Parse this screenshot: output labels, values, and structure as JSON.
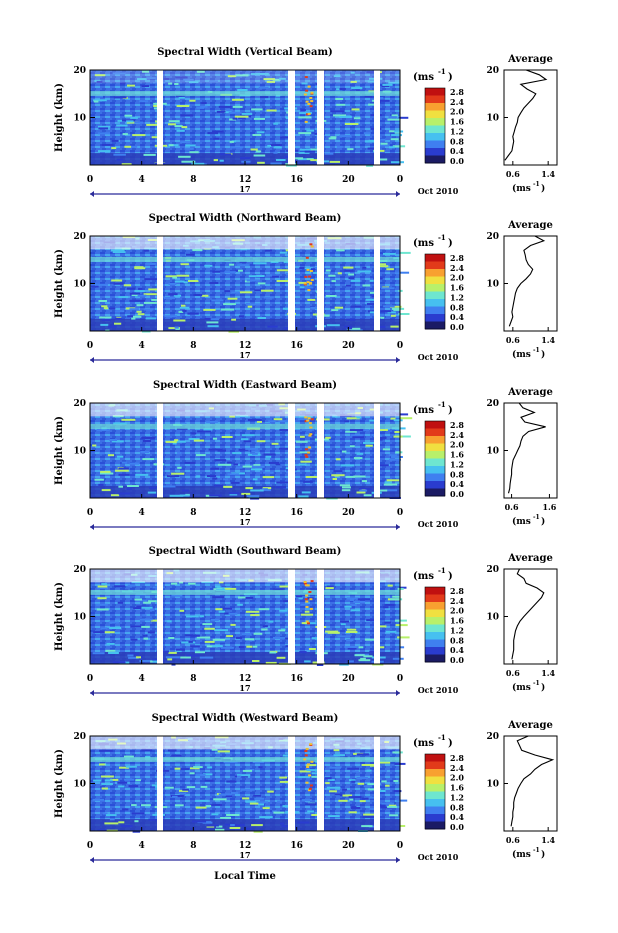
{
  "chart_data": {
    "type": "heatmap",
    "x_axis": {
      "ticks": [
        "0",
        "4",
        "8",
        "12",
        "16",
        "20",
        "0"
      ],
      "day_label": "17",
      "date_label": "Oct 2010",
      "xlabel": "Local Time"
    },
    "y_axis": {
      "label": "Height (km)",
      "ticks": [
        "10",
        "20"
      ],
      "range_km": [
        0,
        20
      ]
    },
    "colorbar": {
      "unit": "(ms",
      "unit_exp": "-1",
      "unit_close": ")",
      "ticks": [
        "2.8",
        "2.4",
        "2.0",
        "1.6",
        "1.2",
        "0.8",
        "0.4",
        "0.0"
      ],
      "range": [
        0,
        2.8
      ],
      "colors": [
        "#1b1b64",
        "#2a3ccf",
        "#3f7ff0",
        "#46c0f0",
        "#6ee6d0",
        "#b8f06a",
        "#f0e040",
        "#f8a030",
        "#e23a1a",
        "#c01010"
      ]
    },
    "average_profile": {
      "title": "Average",
      "ylabel_ticks": [
        "10",
        "20"
      ],
      "xunit": "(ms",
      "xunit_exp": "-1",
      "xunit_close": ")"
    },
    "panels": [
      {
        "title": "Spectral Width (Vertical Beam)",
        "avg_xticks": [
          "0.6",
          "1.4"
        ],
        "avg_xrange": [
          0.4,
          1.6
        ],
        "profile": [
          [
            0.42,
            1
          ],
          [
            0.5,
            2
          ],
          [
            0.58,
            3
          ],
          [
            0.6,
            4
          ],
          [
            0.62,
            5
          ],
          [
            0.6,
            6
          ],
          [
            0.63,
            7
          ],
          [
            0.66,
            8
          ],
          [
            0.7,
            9
          ],
          [
            0.72,
            10
          ],
          [
            0.78,
            11
          ],
          [
            0.85,
            12
          ],
          [
            0.95,
            13
          ],
          [
            1.05,
            14
          ],
          [
            1.12,
            15
          ],
          [
            0.92,
            16
          ],
          [
            0.78,
            17
          ],
          [
            1.35,
            18
          ],
          [
            1.2,
            19
          ],
          [
            0.9,
            20
          ]
        ]
      },
      {
        "title": "Spectral Width (Northward Beam)",
        "avg_xticks": [
          "0.6",
          "1.4"
        ],
        "avg_xrange": [
          0.4,
          1.6
        ],
        "profile": [
          [
            0.52,
            1
          ],
          [
            0.56,
            2
          ],
          [
            0.6,
            3
          ],
          [
            0.58,
            4
          ],
          [
            0.6,
            5
          ],
          [
            0.62,
            6
          ],
          [
            0.64,
            7
          ],
          [
            0.66,
            8
          ],
          [
            0.7,
            9
          ],
          [
            0.78,
            10
          ],
          [
            0.9,
            11
          ],
          [
            1.0,
            12
          ],
          [
            1.05,
            13
          ],
          [
            0.95,
            14
          ],
          [
            0.9,
            15
          ],
          [
            0.88,
            16
          ],
          [
            0.85,
            17
          ],
          [
            1.0,
            18
          ],
          [
            1.3,
            19
          ],
          [
            1.1,
            20
          ]
        ]
      },
      {
        "title": "Spectral Width (Eastward Beam)",
        "avg_xticks": [
          "0.6",
          "1.6"
        ],
        "avg_xrange": [
          0.4,
          1.8
        ],
        "profile": [
          [
            0.52,
            1
          ],
          [
            0.55,
            2
          ],
          [
            0.56,
            3
          ],
          [
            0.58,
            4
          ],
          [
            0.6,
            5
          ],
          [
            0.6,
            6
          ],
          [
            0.62,
            7
          ],
          [
            0.64,
            8
          ],
          [
            0.7,
            9
          ],
          [
            0.76,
            10
          ],
          [
            0.82,
            11
          ],
          [
            0.85,
            12
          ],
          [
            0.9,
            13
          ],
          [
            1.05,
            14
          ],
          [
            1.5,
            15
          ],
          [
            0.95,
            16
          ],
          [
            0.85,
            17
          ],
          [
            1.2,
            18
          ],
          [
            0.9,
            19
          ],
          [
            0.8,
            20
          ]
        ]
      },
      {
        "title": "Spectral Width (Southward Beam)",
        "avg_xticks": [
          "0.6",
          "1.4"
        ],
        "avg_xrange": [
          0.4,
          1.6
        ],
        "profile": [
          [
            0.58,
            1
          ],
          [
            0.6,
            2
          ],
          [
            0.62,
            3
          ],
          [
            0.62,
            4
          ],
          [
            0.62,
            5
          ],
          [
            0.64,
            6
          ],
          [
            0.66,
            7
          ],
          [
            0.7,
            8
          ],
          [
            0.76,
            9
          ],
          [
            0.85,
            10
          ],
          [
            0.95,
            11
          ],
          [
            1.05,
            12
          ],
          [
            1.15,
            13
          ],
          [
            1.25,
            14
          ],
          [
            1.3,
            15
          ],
          [
            1.15,
            16
          ],
          [
            0.9,
            17
          ],
          [
            0.85,
            18
          ],
          [
            0.7,
            19
          ],
          [
            0.75,
            20
          ]
        ]
      },
      {
        "title": "Spectral Width (Westward Beam)",
        "avg_xticks": [
          "0.6",
          "1.4"
        ],
        "avg_xrange": [
          0.4,
          1.6
        ],
        "profile": [
          [
            0.56,
            1
          ],
          [
            0.58,
            2
          ],
          [
            0.6,
            3
          ],
          [
            0.6,
            4
          ],
          [
            0.62,
            5
          ],
          [
            0.62,
            6
          ],
          [
            0.64,
            7
          ],
          [
            0.68,
            8
          ],
          [
            0.72,
            9
          ],
          [
            0.78,
            10
          ],
          [
            0.85,
            11
          ],
          [
            1.0,
            12
          ],
          [
            1.1,
            13
          ],
          [
            1.25,
            14
          ],
          [
            1.5,
            15
          ],
          [
            1.1,
            16
          ],
          [
            0.8,
            17
          ],
          [
            0.75,
            18
          ],
          [
            0.7,
            19
          ],
          [
            0.95,
            20
          ]
        ]
      }
    ]
  }
}
